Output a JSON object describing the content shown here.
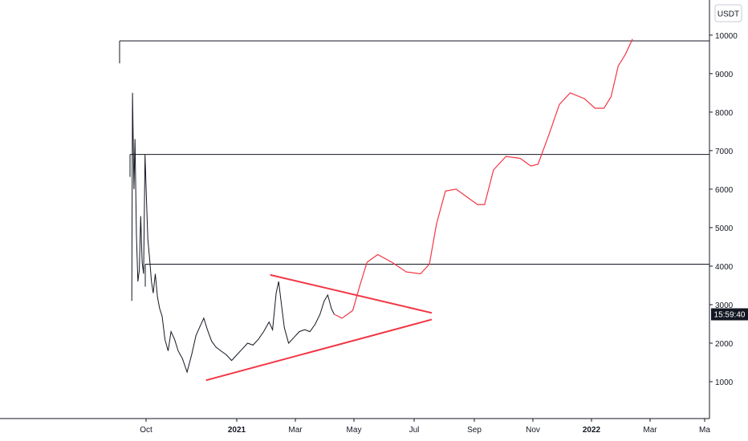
{
  "currency_label": "USDT",
  "last_price_label": "15:59:40",
  "chart_data": {
    "type": "line",
    "title": "",
    "xlabel": "",
    "ylabel": "",
    "ylim": [
      0,
      11000
    ],
    "x_tick_labels": [
      {
        "label": "Oct",
        "bold": false
      },
      {
        "label": "2021",
        "bold": true
      },
      {
        "label": "Mar",
        "bold": false
      },
      {
        "label": "May",
        "bold": false
      },
      {
        "label": "Jul",
        "bold": false
      },
      {
        "label": "Sep",
        "bold": false
      },
      {
        "label": "Nov",
        "bold": false
      },
      {
        "label": "2022",
        "bold": true
      },
      {
        "label": "Mar",
        "bold": false
      },
      {
        "label": "Ma",
        "bold": false
      }
    ],
    "y_ticks": [
      1000,
      2000,
      3000,
      4000,
      5000,
      6000,
      7000,
      8000,
      9000,
      10000
    ],
    "resistance_levels": [
      9850,
      6900,
      4050
    ],
    "price_series": {
      "color": "#131722",
      "points": [
        [
          2020.71,
          3100
        ],
        [
          2020.712,
          8500
        ],
        [
          2020.716,
          6000
        ],
        [
          2020.719,
          7300
        ],
        [
          2020.723,
          4800
        ],
        [
          2020.727,
          3600
        ],
        [
          2020.731,
          3900
        ],
        [
          2020.735,
          5300
        ],
        [
          2020.739,
          4100
        ],
        [
          2020.743,
          3800
        ],
        [
          2020.747,
          6900
        ],
        [
          2020.751,
          5800
        ],
        [
          2020.755,
          4700
        ],
        [
          2020.76,
          4200
        ],
        [
          2020.765,
          3600
        ],
        [
          2020.77,
          3300
        ],
        [
          2020.776,
          3800
        ],
        [
          2020.782,
          3200
        ],
        [
          2020.788,
          2900
        ],
        [
          2020.795,
          2700
        ],
        [
          2020.803,
          2100
        ],
        [
          2020.812,
          1800
        ],
        [
          2020.82,
          2300
        ],
        [
          2020.83,
          2100
        ],
        [
          2020.84,
          1800
        ],
        [
          2020.852,
          1600
        ],
        [
          2020.865,
          1250
        ],
        [
          2020.878,
          1700
        ],
        [
          2020.89,
          2200
        ],
        [
          2020.902,
          2450
        ],
        [
          2020.912,
          2650
        ],
        [
          2020.922,
          2350
        ],
        [
          2020.934,
          2050
        ],
        [
          2020.946,
          1900
        ],
        [
          2020.96,
          1800
        ],
        [
          2020.975,
          1700
        ],
        [
          2020.99,
          1550
        ],
        [
          2021.005,
          1700
        ],
        [
          2021.02,
          1850
        ],
        [
          2021.035,
          2000
        ],
        [
          2021.05,
          1950
        ],
        [
          2021.065,
          2100
        ],
        [
          2021.08,
          2300
        ],
        [
          2021.095,
          2550
        ],
        [
          2021.105,
          2350
        ],
        [
          2021.115,
          3300
        ],
        [
          2021.122,
          3600
        ],
        [
          2021.13,
          3000
        ],
        [
          2021.138,
          2400
        ],
        [
          2021.15,
          2000
        ],
        [
          2021.165,
          2150
        ],
        [
          2021.18,
          2300
        ],
        [
          2021.195,
          2350
        ],
        [
          2021.21,
          2300
        ],
        [
          2021.225,
          2500
        ],
        [
          2021.238,
          2750
        ],
        [
          2021.25,
          3100
        ],
        [
          2021.26,
          3250
        ],
        [
          2021.27,
          2900
        ],
        [
          2021.278,
          2750
        ]
      ]
    },
    "triangle_lines": {
      "color": "#f23645",
      "upper": [
        [
          2021.1,
          3770
        ],
        [
          2021.55,
          2790
        ]
      ],
      "lower": [
        [
          2020.92,
          1040
        ],
        [
          2021.55,
          2610
        ]
      ]
    },
    "projection_series": {
      "color": "#f23645",
      "points": [
        [
          2021.278,
          2750
        ],
        [
          2021.3,
          2650
        ],
        [
          2021.33,
          2850
        ],
        [
          2021.35,
          3500
        ],
        [
          2021.37,
          4100
        ],
        [
          2021.4,
          4300
        ],
        [
          2021.44,
          4100
        ],
        [
          2021.48,
          3850
        ],
        [
          2021.52,
          3800
        ],
        [
          2021.545,
          4050
        ],
        [
          2021.565,
          5100
        ],
        [
          2021.59,
          5950
        ],
        [
          2021.62,
          6000
        ],
        [
          2021.65,
          5800
        ],
        [
          2021.68,
          5600
        ],
        [
          2021.7,
          5600
        ],
        [
          2021.725,
          6500
        ],
        [
          2021.76,
          6850
        ],
        [
          2021.8,
          6800
        ],
        [
          2021.83,
          6600
        ],
        [
          2021.85,
          6650
        ],
        [
          2021.88,
          7400
        ],
        [
          2021.91,
          8200
        ],
        [
          2021.94,
          8500
        ],
        [
          2021.98,
          8350
        ],
        [
          2022.01,
          8100
        ],
        [
          2022.035,
          8100
        ],
        [
          2022.055,
          8400
        ],
        [
          2022.075,
          9200
        ],
        [
          2022.095,
          9500
        ],
        [
          2022.115,
          9900
        ]
      ]
    }
  }
}
